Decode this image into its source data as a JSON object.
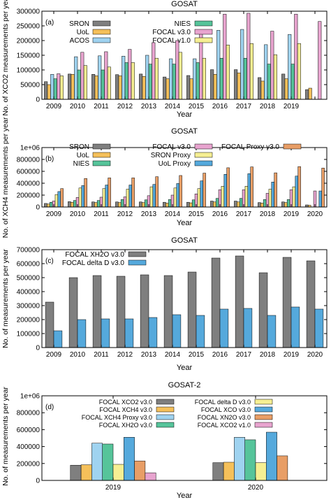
{
  "chart_data": [
    {
      "type": "bar",
      "panel": "(a)",
      "title": "GOSAT",
      "xlabel": "Year",
      "ylabel": "No. of XCO2 measurements per year",
      "ylim": [
        0,
        300000
      ],
      "yticks": [
        "0",
        "50000",
        "100000",
        "150000",
        "200000",
        "250000",
        "300000"
      ],
      "categories": [
        "2009",
        "2010",
        "2011",
        "2012",
        "2013",
        "2014",
        "2015",
        "2016",
        "2017",
        "2018",
        "2019",
        "2020"
      ],
      "xtick_labels": [
        "2009",
        "2010",
        "2011",
        "2012",
        "2013",
        "2014",
        "2015",
        "2016",
        "2017",
        "2018",
        "2019",
        ""
      ],
      "legend": "top, two columns",
      "grid": false,
      "series": [
        {
          "name": "SRON",
          "color": "#7f7f7f",
          "values": [
            60000,
            86000,
            85000,
            84000,
            86000,
            76000,
            81000,
            101000,
            101000,
            74000,
            86000,
            33000
          ]
        },
        {
          "name": "UoL",
          "color": "#f5c05a",
          "values": [
            50000,
            85000,
            80000,
            80000,
            78000,
            70000,
            70000,
            85000,
            90000,
            62000,
            70000,
            38000
          ]
        },
        {
          "name": "ACOS",
          "color": "#9fd3f0",
          "values": [
            85000,
            145000,
            148000,
            147000,
            150000,
            138000,
            138000,
            235000,
            238000,
            186000,
            221000,
            null
          ]
        },
        {
          "name": "NIES",
          "color": "#56c49a",
          "values": [
            70000,
            100000,
            100000,
            125000,
            120000,
            120000,
            125000,
            140000,
            140000,
            120000,
            120000,
            null
          ]
        },
        {
          "name": "FOCAL v3.0",
          "color": "#e8a4cf",
          "values": [
            87000,
            160000,
            162000,
            170000,
            193000,
            200000,
            225000,
            290000,
            293000,
            232000,
            290000,
            265000
          ]
        },
        {
          "name": "FOCAL v1.0",
          "color": "#f6ef93",
          "values": [
            80000,
            115000,
            110000,
            125000,
            140000,
            160000,
            140000,
            185000,
            190000,
            152000,
            190000,
            null
          ]
        }
      ]
    },
    {
      "type": "bar",
      "panel": "(b)",
      "title": "GOSAT",
      "xlabel": "Year",
      "ylabel": "No. of XCH4 measurements per year",
      "ylim": [
        0,
        1000000
      ],
      "yticks": [
        "0",
        "200000",
        "400000",
        "600000",
        "800000",
        "1e+06"
      ],
      "categories": [
        "2009",
        "2010",
        "2011",
        "2012",
        "2013",
        "2014",
        "2015",
        "2016",
        "2017",
        "2018",
        "2019",
        "2020"
      ],
      "xtick_labels": [
        "2009",
        "2010",
        "2011",
        "2012",
        "2013",
        "2014",
        "2015",
        "2016",
        "2017",
        "2018",
        "2019",
        "2020"
      ],
      "legend": "top, three columns",
      "grid": false,
      "series": [
        {
          "name": "SRON",
          "color": "#7f7f7f",
          "values": [
            60000,
            90000,
            85000,
            85000,
            85000,
            80000,
            80000,
            100000,
            100000,
            75000,
            85000,
            35000
          ]
        },
        {
          "name": "UoL",
          "color": "#f5c05a",
          "values": [
            50000,
            80000,
            75000,
            75000,
            75000,
            65000,
            70000,
            85000,
            85000,
            65000,
            75000,
            30000
          ]
        },
        {
          "name": "NIES",
          "color": "#56c49a",
          "values": [
            80000,
            110000,
            110000,
            125000,
            120000,
            125000,
            120000,
            145000,
            145000,
            125000,
            125000,
            null
          ]
        },
        {
          "name": "FOCAL v3.0",
          "color": "#e8a4cf",
          "values": [
            100000,
            160000,
            165000,
            170000,
            190000,
            200000,
            220000,
            290000,
            290000,
            230000,
            290000,
            270000
          ]
        },
        {
          "name": "SRON Proxy",
          "color": "#f6ef93",
          "values": [
            210000,
            320000,
            310000,
            300000,
            340000,
            320000,
            310000,
            350000,
            350000,
            300000,
            340000,
            null
          ]
        },
        {
          "name": "UoL Proxy",
          "color": "#55a9dc",
          "values": [
            260000,
            360000,
            370000,
            370000,
            380000,
            395000,
            440000,
            550000,
            560000,
            420000,
            520000,
            270000
          ]
        },
        {
          "name": "FOCAL Proxy v3.0",
          "color": "#e89e66",
          "values": [
            310000,
            480000,
            490000,
            490000,
            510000,
            530000,
            570000,
            660000,
            675000,
            575000,
            680000,
            655000
          ]
        }
      ]
    },
    {
      "type": "bar",
      "panel": "(c)",
      "title": "GOSAT",
      "xlabel": "Year",
      "ylabel": "No. of measurements per year",
      "ylim": [
        0,
        700000
      ],
      "yticks": [
        "0",
        "100000",
        "200000",
        "300000",
        "400000",
        "500000",
        "600000",
        "700000"
      ],
      "categories": [
        "2009",
        "2010",
        "2011",
        "2012",
        "2013",
        "2014",
        "2015",
        "2016",
        "2017",
        "2018",
        "2019",
        "2020"
      ],
      "xtick_labels": [
        "2009",
        "2010",
        "2011",
        "2012",
        "2013",
        "2014",
        "2015",
        "2016",
        "2017",
        "2018",
        "2019",
        "2020"
      ],
      "legend": "top-left",
      "grid": false,
      "series": [
        {
          "name": "FOCAL XH2O v3.0",
          "color": "#7f7f7f",
          "values": [
            325000,
            500000,
            515000,
            510000,
            520000,
            515000,
            540000,
            640000,
            655000,
            535000,
            645000,
            620000
          ]
        },
        {
          "name": "FOCAL delta D v3.0",
          "color": "#55a9dc",
          "values": [
            120000,
            200000,
            205000,
            205000,
            215000,
            235000,
            230000,
            275000,
            280000,
            230000,
            290000,
            275000
          ]
        }
      ]
    },
    {
      "type": "bar",
      "panel": "(d)",
      "title": "GOSAT-2",
      "xlabel": "Year",
      "ylabel": "No. of measurements per year",
      "ylim": [
        0,
        1000000
      ],
      "yticks": [
        "0",
        "200000",
        "400000",
        "600000",
        "800000",
        "1e+06"
      ],
      "categories": [
        "2019",
        "2020"
      ],
      "xtick_labels": [
        "2019",
        "2020"
      ],
      "legend": "top, two columns",
      "grid": false,
      "series": [
        {
          "name": "FOCAL XCO2 v3.0",
          "color": "#7f7f7f",
          "values": [
            180000,
            210000
          ]
        },
        {
          "name": "FOCAL XCH4 v3.0",
          "color": "#f5c05a",
          "values": [
            185000,
            215000
          ]
        },
        {
          "name": "FOCAL XCH4 Proxy v3.0",
          "color": "#9fd3f0",
          "values": [
            440000,
            510000
          ]
        },
        {
          "name": "FOCAL XH2O v3.0",
          "color": "#56c49a",
          "values": [
            430000,
            480000
          ]
        },
        {
          "name": "FOCAL delta D v3.0",
          "color": "#f6ef93",
          "values": [
            190000,
            210000
          ]
        },
        {
          "name": "FOCAL XCO v3.0",
          "color": "#55a9dc",
          "values": [
            510000,
            570000
          ]
        },
        {
          "name": "FOCAL XN2O v3.0",
          "color": "#e89e66",
          "values": [
            230000,
            290000
          ]
        },
        {
          "name": "FOCAL XCO2 v1.0",
          "color": "#e8a4cf",
          "values": [
            90000,
            null
          ]
        }
      ]
    }
  ]
}
